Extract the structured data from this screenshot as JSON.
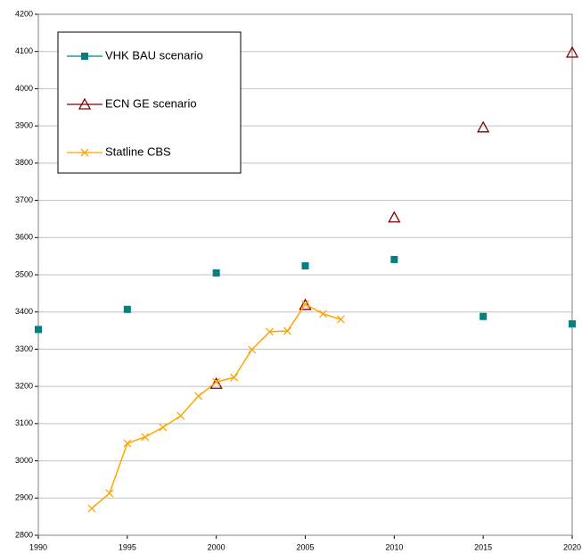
{
  "chart_data": {
    "type": "scatter",
    "xlim": [
      1990,
      2020
    ],
    "xticks": [
      1990,
      1995,
      2000,
      2005,
      2010,
      2015,
      2020
    ],
    "ylim": [
      2800,
      4200
    ],
    "yticks": [
      2800,
      2900,
      3000,
      3100,
      3200,
      3300,
      3400,
      3500,
      3600,
      3700,
      3800,
      3900,
      4000,
      4100,
      4200
    ],
    "grid": true,
    "legend": "upper left",
    "series": [
      {
        "name": "VHK BAU scenario",
        "color": "#008080",
        "marker": "square",
        "line": false,
        "x": [
          1990,
          1995,
          2000,
          2005,
          2010,
          2015,
          2020
        ],
        "values": [
          3353,
          3407,
          3505,
          3524,
          3541,
          3388,
          3368
        ]
      },
      {
        "name": "ECN GE scenario",
        "color": "#800000",
        "marker": "triangle",
        "line": false,
        "x": [
          2000,
          2005,
          2010,
          2015,
          2020
        ],
        "values": [
          3207,
          3419,
          3654,
          3896,
          4097
        ]
      },
      {
        "name": "Statline CBS",
        "color": "#ffa500",
        "marker": "x",
        "line": true,
        "x": [
          1993,
          1994,
          1995,
          1996,
          1997,
          1998,
          1999,
          2000,
          2001,
          2002,
          2003,
          2004,
          2005,
          2006,
          2007
        ],
        "values": [
          2872,
          2913,
          3047,
          3064,
          3090,
          3121,
          3174,
          3212,
          3224,
          3299,
          3347,
          3349,
          3421,
          3395,
          3380
        ]
      }
    ]
  }
}
